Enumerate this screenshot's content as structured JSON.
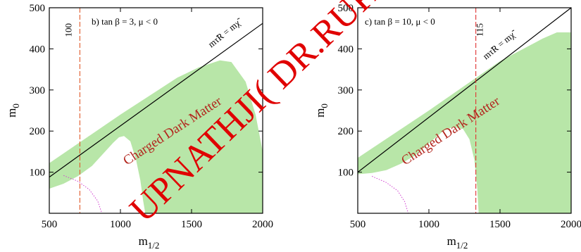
{
  "chart_data": [
    {
      "type": "area",
      "panel_label": "b) tan β = 3,  μ < 0",
      "xlabel": "m1/2",
      "ylabel": "m0",
      "xlim": [
        500,
        2000
      ],
      "ylim": [
        0,
        500
      ],
      "xticks": [
        500,
        1000,
        1500,
        2000
      ],
      "yticks": [
        100,
        200,
        300,
        400,
        500
      ],
      "vline": {
        "x": 715,
        "label": "100",
        "color": "#e05a2a"
      },
      "boundary_label": "mτ̃R = mχ̃",
      "boundary_line": [
        [
          500,
          88
        ],
        [
          2000,
          462
        ]
      ],
      "region_label": "Charged Dark Matter",
      "green_region": [
        [
          500,
          122
        ],
        [
          1000,
          240
        ],
        [
          1400,
          330
        ],
        [
          1550,
          355
        ],
        [
          1700,
          372
        ],
        [
          1780,
          368
        ],
        [
          1880,
          320
        ],
        [
          1950,
          240
        ],
        [
          2000,
          150
        ],
        [
          2000,
          0
        ],
        [
          1175,
          0
        ],
        [
          1160,
          30
        ],
        [
          1140,
          80
        ],
        [
          1110,
          130
        ],
        [
          1070,
          175
        ],
        [
          1025,
          188
        ],
        [
          990,
          185
        ],
        [
          950,
          172
        ],
        [
          800,
          115
        ],
        [
          700,
          90
        ],
        [
          600,
          72
        ],
        [
          500,
          60
        ]
      ],
      "dotted_curve": [
        [
          600,
          92
        ],
        [
          700,
          78
        ],
        [
          780,
          58
        ],
        [
          840,
          30
        ],
        [
          870,
          0
        ]
      ],
      "colors": {
        "region": "#b8e6a8",
        "boundary": "#000000",
        "dotted": "#d040d0"
      }
    },
    {
      "type": "area",
      "panel_label": "c) tan β = 10,  μ < 0",
      "xlabel": "m1/2",
      "ylabel": "m0",
      "xlim": [
        500,
        2000
      ],
      "ylim": [
        0,
        500
      ],
      "xticks": [
        500,
        1000,
        1500,
        2000
      ],
      "yticks": [
        100,
        200,
        300,
        400,
        500
      ],
      "vline": {
        "x": 1330,
        "label": "115",
        "color": "#e03030"
      },
      "boundary_label": "mτ̃R = mχ̃",
      "boundary_line": [
        [
          500,
          100
        ],
        [
          2000,
          500
        ]
      ],
      "region_label": "Charged Dark Matter",
      "green_region": [
        [
          500,
          135
        ],
        [
          1000,
          250
        ],
        [
          1500,
          370
        ],
        [
          1800,
          425
        ],
        [
          1900,
          440
        ],
        [
          2000,
          440
        ],
        [
          2000,
          0
        ],
        [
          1350,
          0
        ],
        [
          1340,
          60
        ],
        [
          1320,
          130
        ],
        [
          1285,
          180
        ],
        [
          1240,
          205
        ],
        [
          1170,
          210
        ],
        [
          1100,
          200
        ],
        [
          1000,
          170
        ],
        [
          900,
          140
        ],
        [
          800,
          120
        ],
        [
          700,
          105
        ],
        [
          600,
          98
        ],
        [
          500,
          95
        ]
      ],
      "dotted_curve": [
        [
          600,
          90
        ],
        [
          700,
          75
        ],
        [
          780,
          55
        ],
        [
          830,
          28
        ],
        [
          855,
          0
        ]
      ],
      "colors": {
        "region": "#b8e6a8",
        "boundary": "#000000",
        "dotted": "#d040d0"
      }
    }
  ],
  "watermark": "UPNATHJI( DR.RUPAK"
}
